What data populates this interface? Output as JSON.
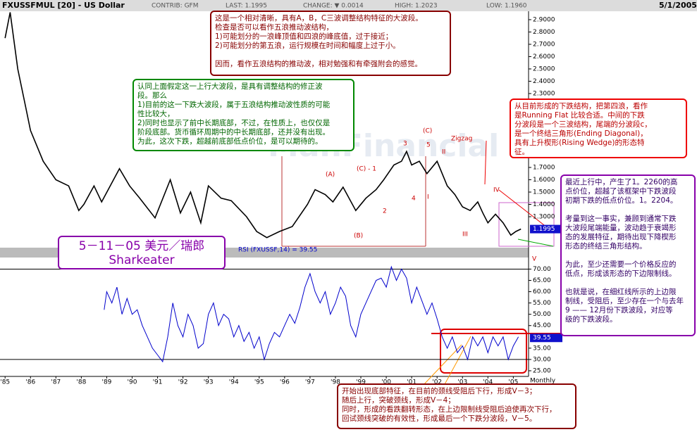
{
  "header": {
    "title": "FXUSSFMUL [20] - US Dollar",
    "contrib": "CONTRIB: GFM",
    "last": "LAST: 1.1995",
    "change": "CHANGE: ▼ 0.0014",
    "high": "HIGH: 1.2023",
    "low": "LOW: 1.1960",
    "date": "5/1/2005"
  },
  "chart_data": [
    {
      "type": "line",
      "color": "#000000",
      "xlim": [
        1984.8,
        2005.6
      ],
      "ylim": [
        1.06,
        3.014
      ],
      "xticks": [
        {
          "value": 1985,
          "label": "'85"
        },
        {
          "value": 1986,
          "label": "'86"
        },
        {
          "value": 1987,
          "label": "'87"
        },
        {
          "value": 1988,
          "label": "'88"
        },
        {
          "value": 1989,
          "label": "'89"
        },
        {
          "value": 1990,
          "label": "'90"
        },
        {
          "value": 1991,
          "label": "'91"
        },
        {
          "value": 1992,
          "label": "'92"
        },
        {
          "value": 1993,
          "label": "'93"
        },
        {
          "value": 1994,
          "label": "'94"
        },
        {
          "value": 1995,
          "label": "'95"
        },
        {
          "value": 1996,
          "label": "'96"
        },
        {
          "value": 1997,
          "label": "'97"
        },
        {
          "value": 1998,
          "label": "'98"
        },
        {
          "value": 1999,
          "label": "'99"
        },
        {
          "value": 2000,
          "label": "'00"
        },
        {
          "value": 2001,
          "label": "'01"
        },
        {
          "value": 2002,
          "label": "'02"
        },
        {
          "value": 2003,
          "label": "'03"
        },
        {
          "value": 2004,
          "label": "'04"
        },
        {
          "value": 2005,
          "label": "'05"
        }
      ],
      "x_axis_label": "Monthly",
      "yticks": [
        {
          "value": 1.3,
          "label": "1.3000"
        },
        {
          "value": 1.4,
          "label": "1.4000"
        },
        {
          "value": 1.5,
          "label": "1.5000"
        },
        {
          "value": 1.6,
          "label": "1.6000"
        },
        {
          "value": 1.7,
          "label": "1.7000"
        },
        {
          "value": 2.3,
          "label": "2.3000"
        },
        {
          "value": 2.4,
          "label": "2.4000"
        },
        {
          "value": 2.5,
          "label": "2.5000"
        },
        {
          "value": 2.6,
          "label": "2.6000"
        },
        {
          "value": 2.7,
          "label": "2.7000"
        },
        {
          "value": 2.8,
          "label": "2.8000"
        },
        {
          "value": 2.9,
          "label": "2.9000"
        }
      ],
      "last_value": 1.1995,
      "last_value_label": "1.1995",
      "x": [
        1985.0,
        1985.2,
        1985.5,
        1985.8,
        1986.0,
        1986.5,
        1987.0,
        1987.5,
        1987.9,
        1988.1,
        1988.5,
        1988.8,
        1989.5,
        1989.9,
        1990.3,
        1990.9,
        1991.5,
        1991.9,
        1992.3,
        1992.7,
        1993.0,
        1993.5,
        1993.9,
        1994.5,
        1994.9,
        1995.3,
        1995.8,
        1996.3,
        1996.9,
        1997.2,
        1997.6,
        1997.9,
        1998.3,
        1998.8,
        1999.2,
        1999.6,
        1999.9,
        2000.3,
        2000.6,
        2000.8,
        2001.0,
        2001.3,
        2001.6,
        2002.0,
        2002.4,
        2002.7,
        2003.0,
        2003.3,
        2003.6,
        2003.8,
        2004.0,
        2004.3,
        2004.6,
        2004.9,
        2005.1,
        2005.3
      ],
      "values": [
        2.75,
        2.96,
        2.5,
        2.2,
        2.0,
        1.75,
        1.6,
        1.55,
        1.35,
        1.4,
        1.55,
        1.42,
        1.69,
        1.55,
        1.45,
        1.29,
        1.6,
        1.33,
        1.5,
        1.25,
        1.55,
        1.45,
        1.43,
        1.3,
        1.18,
        1.13,
        1.18,
        1.22,
        1.4,
        1.52,
        1.48,
        1.42,
        1.54,
        1.35,
        1.45,
        1.52,
        1.6,
        1.72,
        1.75,
        1.83,
        1.72,
        1.75,
        1.65,
        1.75,
        1.55,
        1.48,
        1.38,
        1.35,
        1.42,
        1.33,
        1.25,
        1.32,
        1.25,
        1.15,
        1.18,
        1.2
      ],
      "wave_labels": [
        "(A)",
        "(B)",
        "(C) - 1",
        "(C)",
        "2",
        "3",
        "4",
        "5",
        "I",
        "II",
        "III",
        "IV",
        "V",
        "Zigzag"
      ],
      "watermark": "ManFinancial"
    },
    {
      "type": "line",
      "color": "#0000cc",
      "title": "RSI (FXUSSF,14) = 39.55",
      "xlim": [
        1984.8,
        2005.6
      ],
      "ylim": [
        22.5,
        74.5
      ],
      "yticks": [
        {
          "value": 25,
          "label": "25.00"
        },
        {
          "value": 30,
          "label": "30.00"
        },
        {
          "value": 35,
          "label": "35.00"
        },
        {
          "value": 45,
          "label": "45.00"
        },
        {
          "value": 50,
          "label": "50.00"
        },
        {
          "value": 55,
          "label": "55.00"
        },
        {
          "value": 60,
          "label": "60.00"
        },
        {
          "value": 65,
          "label": "65.00"
        },
        {
          "value": 70,
          "label": "70.00"
        }
      ],
      "hlines": [
        70,
        30
      ],
      "last_value": 39.55,
      "last_value_label": "39.55",
      "x": [
        1988.9,
        1989.0,
        1989.2,
        1989.4,
        1989.6,
        1989.8,
        1990.0,
        1990.2,
        1990.4,
        1990.6,
        1990.8,
        1991.0,
        1991.2,
        1991.4,
        1991.6,
        1991.8,
        1992.0,
        1992.2,
        1992.4,
        1992.6,
        1992.8,
        1993.0,
        1993.2,
        1993.4,
        1993.6,
        1993.8,
        1994.0,
        1994.2,
        1994.4,
        1994.6,
        1994.8,
        1995.0,
        1995.2,
        1995.4,
        1995.6,
        1995.8,
        1996.0,
        1996.2,
        1996.4,
        1996.6,
        1996.8,
        1997.0,
        1997.2,
        1997.4,
        1997.6,
        1997.8,
        1998.0,
        1998.2,
        1998.4,
        1998.6,
        1998.8,
        1999.0,
        1999.2,
        1999.4,
        1999.6,
        1999.8,
        2000.0,
        2000.2,
        2000.4,
        2000.6,
        2000.8,
        2001.0,
        2001.2,
        2001.4,
        2001.6,
        2001.8,
        2002.0,
        2002.2,
        2002.4,
        2002.6,
        2002.8,
        2003.0,
        2003.2,
        2003.4,
        2003.6,
        2003.8,
        2004.0,
        2004.2,
        2004.4,
        2004.6,
        2004.8,
        2005.0,
        2005.2
      ],
      "values": [
        52,
        60,
        55,
        62,
        50,
        57,
        50,
        52,
        45,
        40,
        35,
        32,
        29,
        40,
        55,
        45,
        40,
        50,
        45,
        35,
        37,
        50,
        55,
        45,
        50,
        48,
        40,
        45,
        38,
        42,
        35,
        40,
        30,
        37,
        42,
        40,
        45,
        50,
        46,
        53,
        62,
        68,
        60,
        55,
        60,
        50,
        55,
        62,
        58,
        45,
        40,
        50,
        55,
        60,
        65,
        66,
        62,
        71,
        65,
        70,
        66,
        55,
        62,
        56,
        50,
        55,
        48,
        40,
        35,
        40,
        33,
        36,
        30,
        40,
        36,
        40,
        33,
        40,
        36,
        40,
        30,
        36,
        40
      ]
    }
  ],
  "notes": {
    "top": [
      [
        "这是一个相对清晰，具有A，B，C三波调整结构特征的大波段。",
        "检查是否可以看作五浪推动波结构，",
        "1)可能划分的一浪峰顶值和四浪的峰底值，过于接近；",
        "2)可能划分的第五浪，运行规模在时间和幅度上过于小。"
      ],
      [
        "因而，看作五浪结构的推动波，相对勉强和有牵强附会的感觉。"
      ]
    ],
    "green": [
      [
        "认同上面假定这一上行大波段，是具有调整结构的修正波",
        "段。那么",
        "1)目前的这一下跌大波段，属于五浪结构推动波性质的可能",
        "性比较大，",
        "2)同时也显示了前中长期底部，不过，在性质上，也仅仅是",
        "阶段底部。货币循环周期中的中长期底部，还并没有出现。",
        "为此，这次下跌，超越前底部低点价位，是可以期待的。"
      ]
    ],
    "red": [
      [
        "从目前形成的下跌结构，把第四浪，看作",
        "是Running Flat 比较合适。中间的下跌",
        "分波段是一个三波结构，尾端的分波段c，",
        "是一个终结三角形(Ending Diagonal)，",
        "具有上升楔形(Rising Wedge)的形态特",
        "征。"
      ]
    ],
    "purple": [
      [
        "最近上行中，产生了1。2260的高",
        "点价位，超越了该框架中下跌波段",
        "初期下跌的低点价位。1。2204。"
      ],
      [
        "考量到这一事实，兼顾到通常下跌",
        "大波段尾端能量，波动趋于衰竭形",
        "态的发展特征，期待出现下降楔形",
        "形态的终结三角形结构。"
      ],
      [
        "为此，至少还需要一个价格反应的",
        "低点，形成该形态的下边限制线。"
      ],
      [
        "也就是说，在细红线所示的上边限",
        "制线，受阻后，至少存在一个与去年",
        "9 —— 12月份下跌波段，对应等",
        "级的下跌波段。"
      ]
    ],
    "bottom": [
      [
        "开始出现底部特征，在目前的颈线受阻后下行，形成V－3；",
        " 随后上行，突破颈线，形成V－4；",
        "同时，形成的看跌翻转形态，在上边限制线受阻后迫使再次下行，",
        "回试颈线突破的有效性，形成最后一个下跌分波段，V－5。"
      ]
    ],
    "signature": [
      "5－11－05  美元／瑞郎",
      "Sharkeater"
    ]
  }
}
